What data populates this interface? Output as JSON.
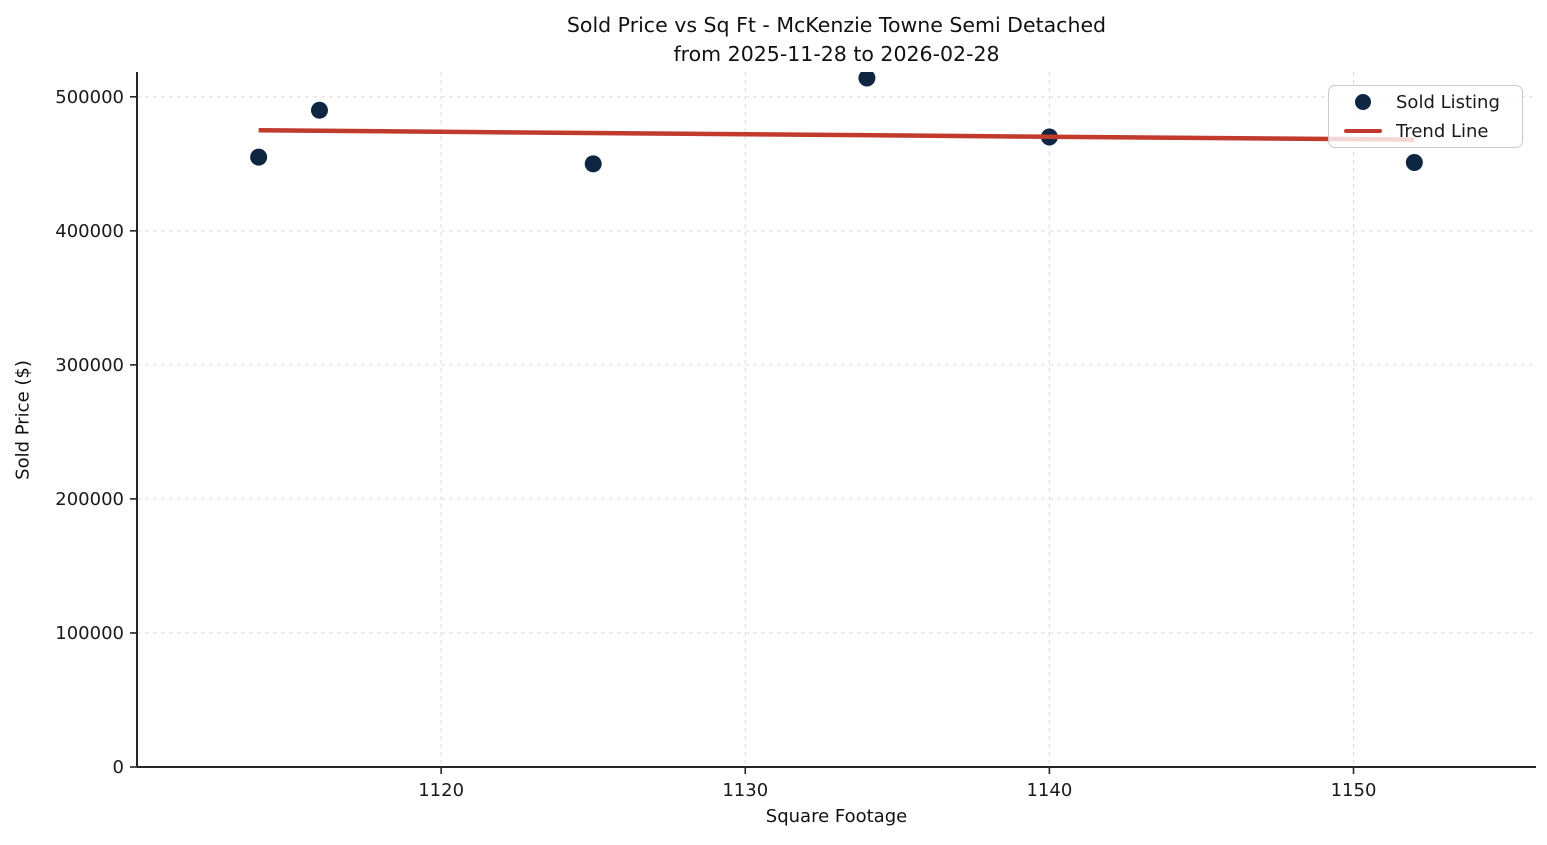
{
  "figure": {
    "title_line1": "Sold Price vs Sq Ft - McKenzie Towne Semi Detached",
    "title_line2": "from 2025-11-28 to 2026-02-28",
    "xlabel": "Square Footage",
    "ylabel": "Sold Price ($)"
  },
  "legend": {
    "position": "upper right",
    "items": [
      {
        "label": "Sold Listing",
        "marker": "dot",
        "color": "#0f2642"
      },
      {
        "label": "Trend Line",
        "marker": "line",
        "color": "#c13a2c"
      }
    ]
  },
  "chart_data": {
    "type": "scatter",
    "title": "Sold Price vs Sq Ft - McKenzie Towne Semi Detached",
    "subtitle": "from 2025-11-28 to 2026-02-28",
    "xlabel": "Square Footage",
    "ylabel": "Sold Price ($)",
    "xlim": [
      1110,
      1156
    ],
    "ylim": [
      0,
      518500
    ],
    "x_ticks": [
      1120,
      1130,
      1140,
      1150
    ],
    "y_ticks": [
      0,
      100000,
      200000,
      300000,
      400000,
      500000
    ],
    "grid": true,
    "grid_style": "dashed",
    "legend_position": "upper right",
    "series": [
      {
        "name": "Sold Listing",
        "kind": "scatter",
        "color": "#0f2642",
        "points": [
          [
            1114,
            455000
          ],
          [
            1116,
            490000
          ],
          [
            1125,
            450000
          ],
          [
            1134,
            514000
          ],
          [
            1140,
            470000
          ],
          [
            1152,
            451000
          ]
        ]
      },
      {
        "name": "Trend Line",
        "kind": "line",
        "color": "#c13a2c",
        "points": [
          [
            1114,
            475000
          ],
          [
            1152,
            468000
          ]
        ]
      }
    ],
    "colors": {
      "marker": "#0f2642",
      "trend": "#c13a2c",
      "grid": "#dcdcdc",
      "spine": "#262626",
      "tick_text": "#1a1a1a"
    }
  }
}
